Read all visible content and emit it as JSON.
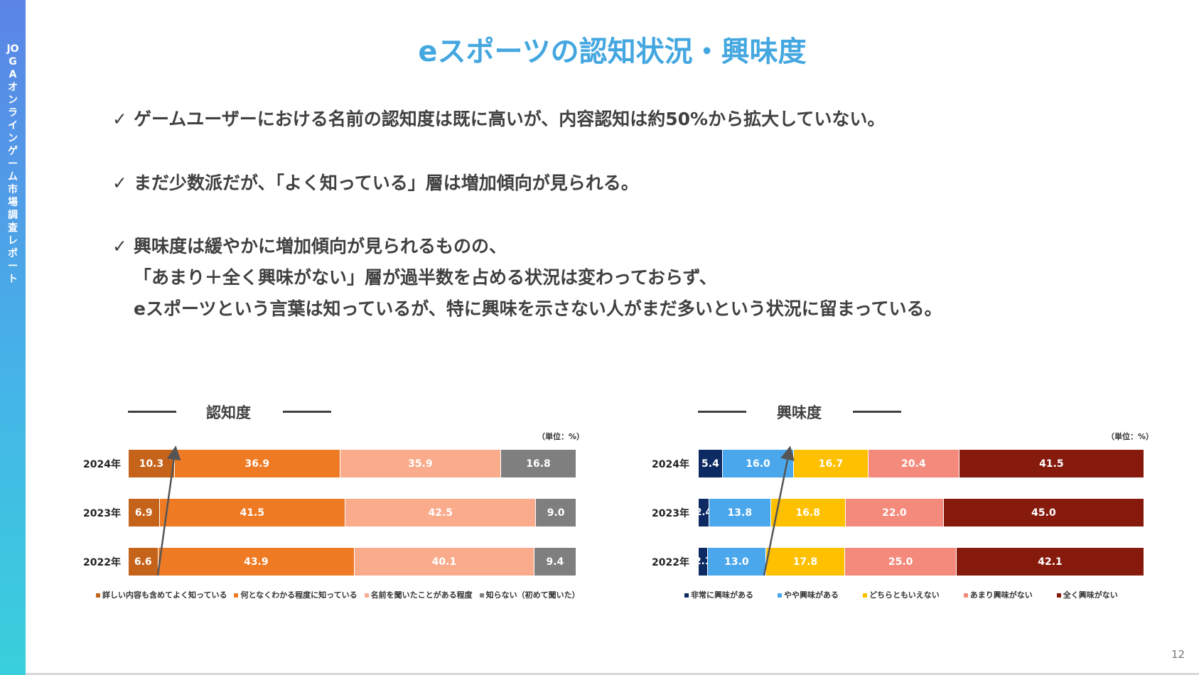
{
  "sidebar": {
    "text": "JOGAオンラインゲーム市場調査レポート"
  },
  "title": "eスポーツの認知状況・興味度",
  "bullets": [
    {
      "check": "✓",
      "lines": [
        "ゲームユーザーにおける名前の認知度は既に高いが、内容認知は約50%から拡大していない。"
      ]
    },
    {
      "check": "✓",
      "lines": [
        "まだ少数派だが、「よく知っている」層は増加傾向が見られる。"
      ]
    },
    {
      "check": "✓",
      "lines": [
        "興味度は緩やかに増加傾向が見られるものの、",
        "「あまり＋全く興味がない」層が過半数を占める状況は変わっておらず、",
        "eスポーツという言葉は知っているが、特に興味を示さない人がまだ多いという状況に留まっている。"
      ]
    }
  ],
  "page_number": "12",
  "chart_data": [
    {
      "type": "bar",
      "orientation": "horizontal-stacked-100",
      "title": "認知度",
      "unit_label": "（単位：%）",
      "categories": [
        "2024年",
        "2023年",
        "2022年"
      ],
      "series": [
        {
          "name": "詳しい内容も含めてよく知っている",
          "color": "#c5631a",
          "values": [
            10.3,
            6.9,
            6.6
          ]
        },
        {
          "name": "何となくわかる程度に知っている",
          "color": "#ef7a24",
          "values": [
            36.9,
            41.5,
            43.9
          ]
        },
        {
          "name": "名前を聞いたことがある程度",
          "color": "#f9ab8b",
          "values": [
            35.9,
            42.5,
            40.1
          ]
        },
        {
          "name": "知らない（初めて聞いた）",
          "color": "#7f7f7f",
          "values": [
            16.8,
            9.0,
            9.4
          ]
        }
      ],
      "labels": [
        [
          "10.3",
          "36.9",
          "35.9",
          "16.8"
        ],
        [
          "6.9",
          "41.5",
          "42.5",
          "9.0"
        ],
        [
          "6.6",
          "43.9",
          "40.1",
          "9.4"
        ]
      ]
    },
    {
      "type": "bar",
      "orientation": "horizontal-stacked-100",
      "title": "興味度",
      "unit_label": "（単位：%）",
      "categories": [
        "2024年",
        "2023年",
        "2022年"
      ],
      "series": [
        {
          "name": "非常に興味がある",
          "color": "#0d2a63",
          "values": [
            5.4,
            2.4,
            2.1
          ]
        },
        {
          "name": "やや興味がある",
          "color": "#4aa7ec",
          "values": [
            16.0,
            13.8,
            13.0
          ]
        },
        {
          "name": "どちらともいえない",
          "color": "#ffc000",
          "values": [
            16.7,
            16.8,
            17.8
          ]
        },
        {
          "name": "あまり興味がない",
          "color": "#f48a7c",
          "values": [
            20.4,
            22.0,
            25.0
          ]
        },
        {
          "name": "全く興味がない",
          "color": "#861a0c",
          "values": [
            41.5,
            45.0,
            42.1
          ]
        }
      ],
      "labels": [
        [
          "5.4",
          "16.0",
          "16.7",
          "20.4",
          "41.5"
        ],
        [
          "2.4",
          "13.8",
          "16.8",
          "22.0",
          "45.0"
        ],
        [
          "2.1",
          "13.0",
          "17.8",
          "25.0",
          "42.1"
        ]
      ]
    }
  ]
}
